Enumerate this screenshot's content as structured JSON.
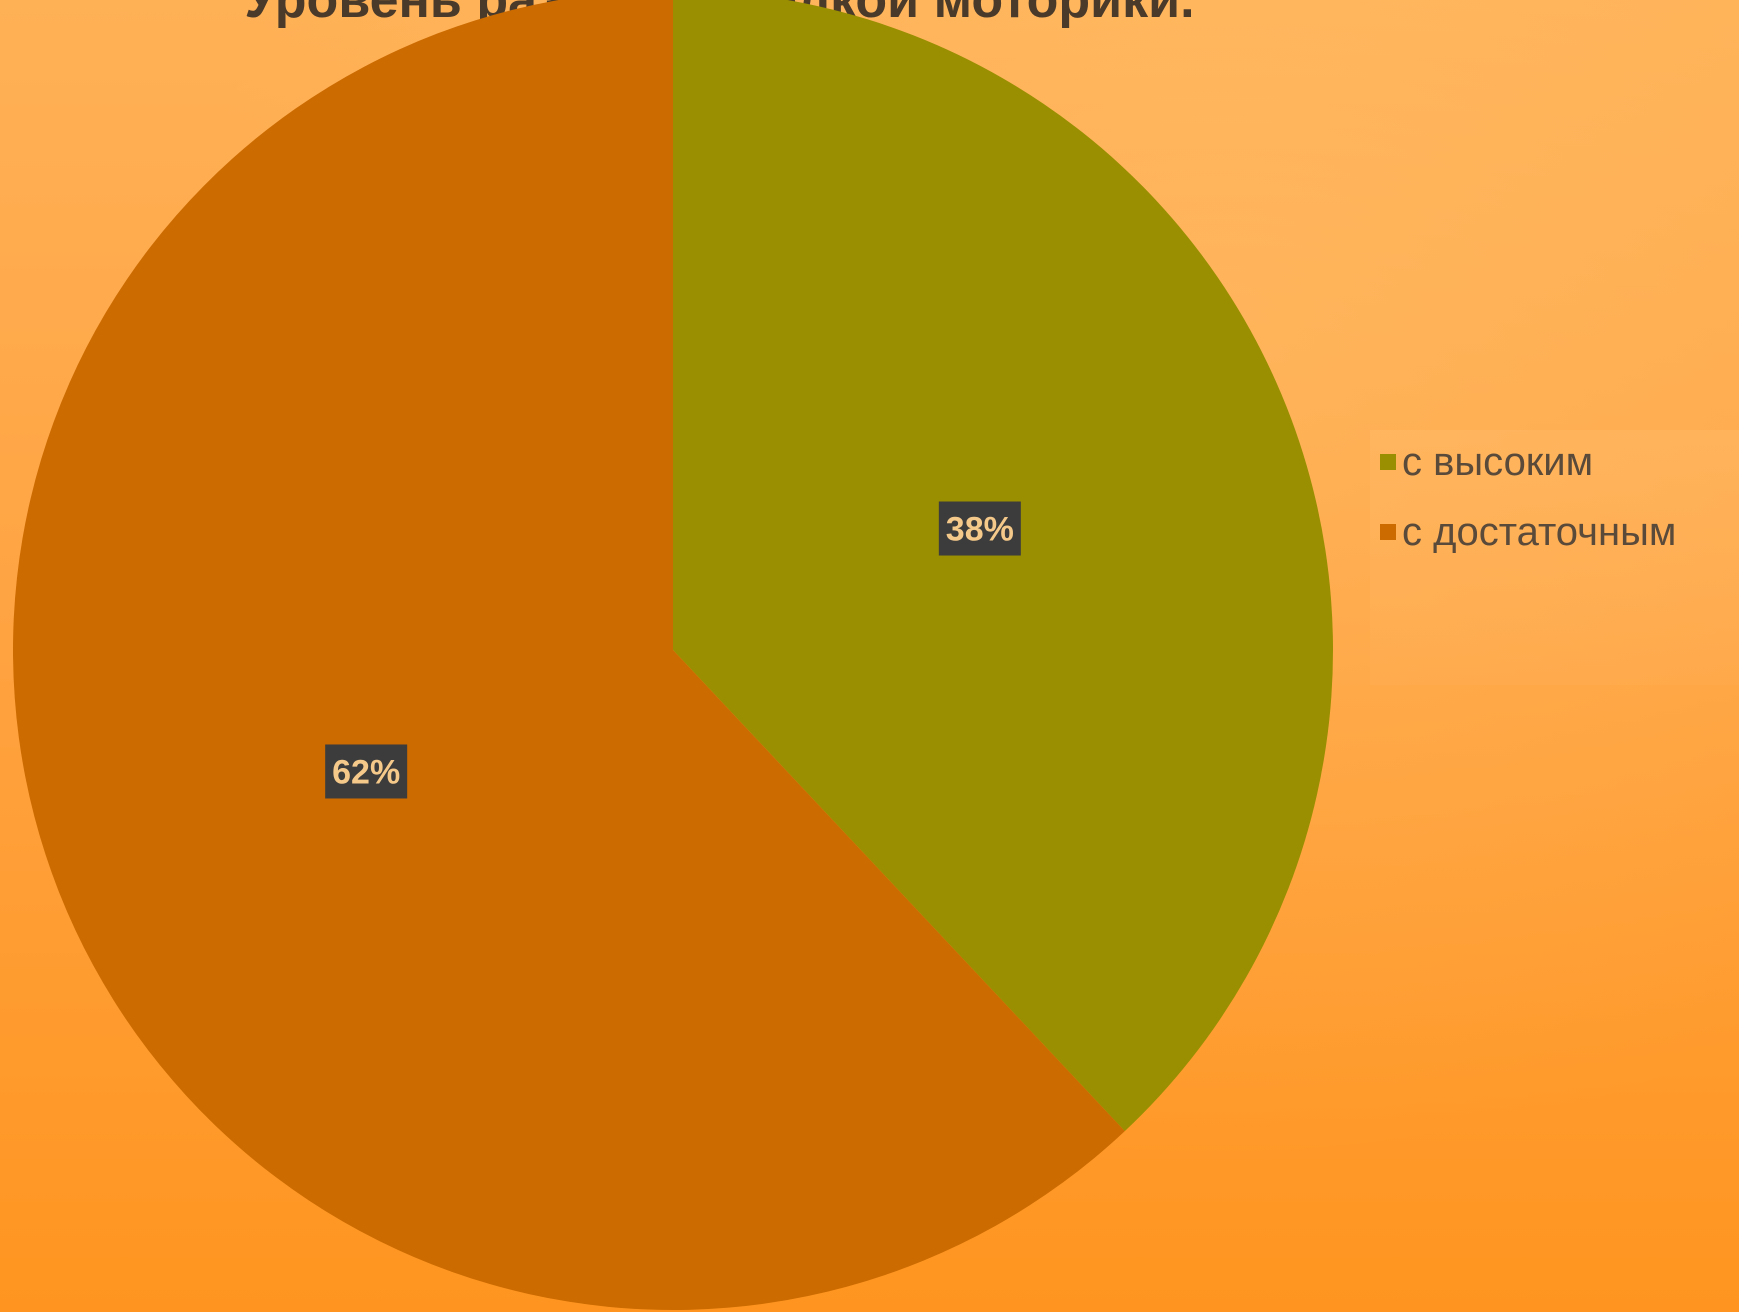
{
  "chart_data": {
    "type": "pie",
    "title": "Уровень развития мелкой моторики.",
    "series": [
      {
        "name": "",
        "slices": [
          {
            "label": "с высоким",
            "value": 38,
            "display": "38%",
            "color": "#9a8f00"
          },
          {
            "label": "с достаточным",
            "value": 62,
            "display": "62%",
            "color": "#cc6b00"
          }
        ]
      }
    ],
    "legend_position": "right",
    "data_label_style": {
      "background": "#3c3c3c",
      "text_color": "#f5c98a"
    }
  }
}
